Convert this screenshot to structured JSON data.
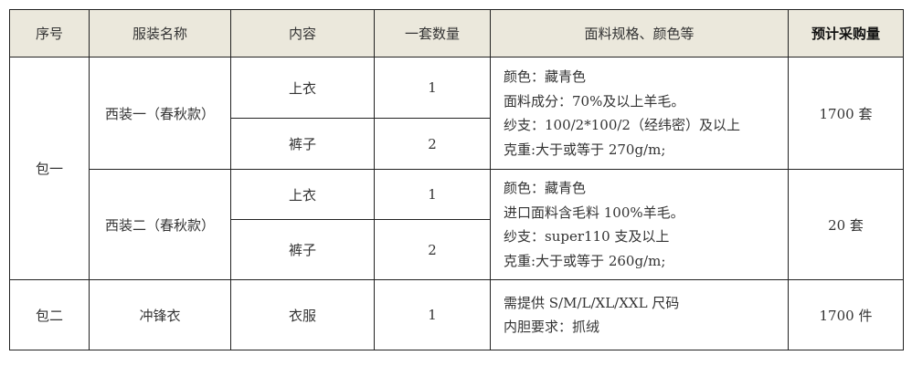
{
  "headers": [
    "序号",
    "服装名称",
    "内容",
    "一套数量",
    "面料规格、颜色等",
    "预计采购量"
  ],
  "package1": {
    "label": "包一",
    "suit1": {
      "name": "西装一（春秋款）",
      "items": [
        {
          "content": "上衣",
          "qty": "1"
        },
        {
          "content": "裤子",
          "qty": "2"
        }
      ],
      "spec": [
        "颜色：藏青色",
        "面料成分：70%及以上羊毛。",
        "纱支：100/2*100/2（经纬密）及以上",
        "克重:大于或等于 270g/m;"
      ],
      "amount": "1700 套"
    },
    "suit2": {
      "name": "西装二（春秋款）",
      "items": [
        {
          "content": "上衣",
          "qty": "1"
        },
        {
          "content": "裤子",
          "qty": "2"
        }
      ],
      "spec": [
        "颜色：藏青色",
        "进口面料含毛料 100%羊毛。",
        "纱支：super110 支及以上",
        "克重:大于或等于 260g/m;"
      ],
      "amount": "20 套"
    }
  },
  "package2": {
    "label": "包二",
    "name": "冲锋衣",
    "content": "衣服",
    "qty": "1",
    "spec": [
      "需提供 S/M/L/XL/XXL 尺码",
      "内胆要求：抓绒"
    ],
    "amount": "1700 件"
  }
}
